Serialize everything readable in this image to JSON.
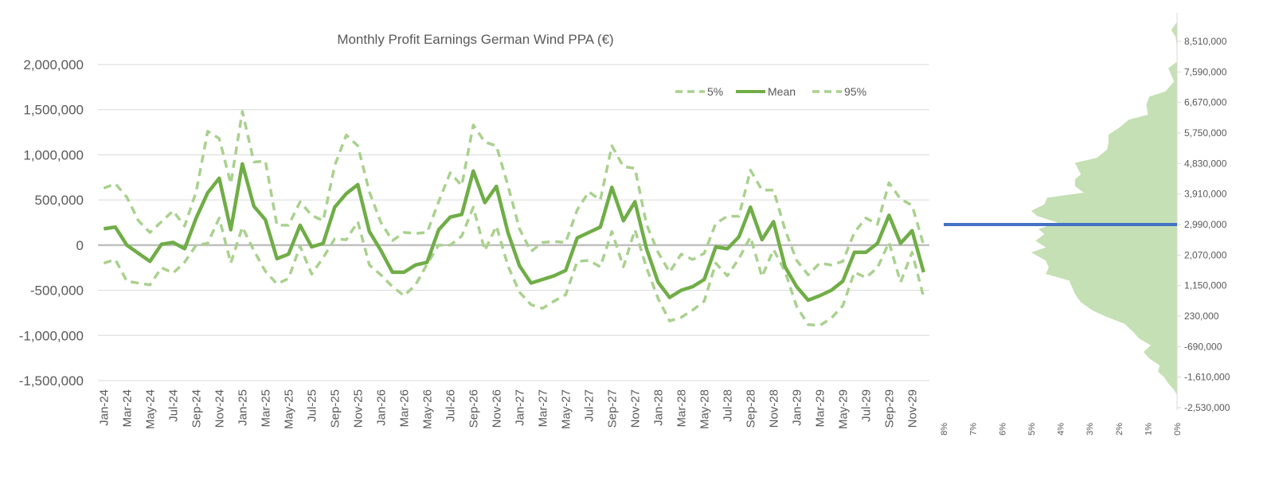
{
  "chart_data": [
    {
      "type": "line",
      "title": "Monthly Profit Earnings German Wind PPA (€)",
      "xlabel": "",
      "ylabel": "",
      "ylim": [
        -1500000,
        2000000
      ],
      "y_ticks": [
        2000000,
        1500000,
        1000000,
        500000,
        0,
        -500000,
        -1000000,
        -1500000
      ],
      "y_tick_labels": [
        "2,000,000",
        "1,500,000",
        "1,000,000",
        "500,000",
        "0",
        "-500,000",
        "-1,000,000",
        "-1,500,000"
      ],
      "grid": true,
      "legend_position": "top-right",
      "categories": [
        "Jan-24",
        "Feb-24",
        "Mar-24",
        "Apr-24",
        "May-24",
        "Jun-24",
        "Jul-24",
        "Aug-24",
        "Sep-24",
        "Oct-24",
        "Nov-24",
        "Dec-24",
        "Jan-25",
        "Feb-25",
        "Mar-25",
        "Apr-25",
        "May-25",
        "Jun-25",
        "Jul-25",
        "Aug-25",
        "Sep-25",
        "Oct-25",
        "Nov-25",
        "Dec-25",
        "Jan-26",
        "Feb-26",
        "Mar-26",
        "Apr-26",
        "May-26",
        "Jun-26",
        "Jul-26",
        "Aug-26",
        "Sep-26",
        "Oct-26",
        "Nov-26",
        "Dec-26",
        "Jan-27",
        "Feb-27",
        "Mar-27",
        "Apr-27",
        "May-27",
        "Jun-27",
        "Jul-27",
        "Aug-27",
        "Sep-27",
        "Oct-27",
        "Nov-27",
        "Dec-27",
        "Jan-28",
        "Feb-28",
        "Mar-28",
        "Apr-28",
        "May-28",
        "Jun-28",
        "Jul-28",
        "Aug-28",
        "Sep-28",
        "Oct-28",
        "Nov-28",
        "Dec-28",
        "Jan-29",
        "Feb-29",
        "Mar-29",
        "Apr-29",
        "May-29",
        "Jun-29",
        "Jul-29",
        "Aug-29",
        "Sep-29",
        "Oct-29",
        "Nov-29",
        "Dec-29"
      ],
      "x_tick_labels": [
        "Jan-24",
        "Mar-24",
        "May-24",
        "Jul-24",
        "Sep-24",
        "Nov-24",
        "Jan-25",
        "Mar-25",
        "May-25",
        "Jul-25",
        "Sep-25",
        "Nov-25",
        "Jan-26",
        "Mar-26",
        "May-26",
        "Jul-26",
        "Sep-26",
        "Nov-26",
        "Jan-27",
        "Mar-27",
        "May-27",
        "Jul-27",
        "Sep-27",
        "Nov-27",
        "Jan-28",
        "Mar-28",
        "May-28",
        "Jul-28",
        "Sep-28",
        "Nov-28",
        "Jan-29",
        "Mar-29",
        "May-29",
        "Jul-29",
        "Sep-29",
        "Nov-29"
      ],
      "series": [
        {
          "name": "5%",
          "style": "dashed",
          "color": "#a9d18e",
          "values": [
            -200000,
            -160000,
            -400000,
            -420000,
            -440000,
            -250000,
            -310000,
            -190000,
            0,
            20000,
            300000,
            -200000,
            200000,
            -60000,
            -290000,
            -430000,
            -370000,
            -10000,
            -320000,
            -140000,
            70000,
            60000,
            260000,
            -220000,
            -330000,
            -460000,
            -560000,
            -440000,
            -210000,
            0,
            0,
            100000,
            420000,
            -60000,
            210000,
            -230000,
            -520000,
            -660000,
            -700000,
            -620000,
            -550000,
            -180000,
            -170000,
            -240000,
            150000,
            -240000,
            170000,
            -250000,
            -590000,
            -840000,
            -800000,
            -720000,
            -620000,
            -200000,
            -340000,
            -150000,
            90000,
            -350000,
            -50000,
            -290000,
            -680000,
            -880000,
            -890000,
            -810000,
            -670000,
            -300000,
            -360000,
            -250000,
            30000,
            -410000,
            -80000,
            -580000
          ]
        },
        {
          "name": "Mean",
          "style": "solid",
          "color": "#70ad47",
          "values": [
            180000,
            200000,
            0,
            -90000,
            -180000,
            10000,
            30000,
            -40000,
            300000,
            580000,
            740000,
            170000,
            900000,
            430000,
            280000,
            -150000,
            -100000,
            220000,
            -20000,
            20000,
            420000,
            570000,
            670000,
            150000,
            -60000,
            -300000,
            -300000,
            -220000,
            -190000,
            170000,
            310000,
            340000,
            820000,
            470000,
            650000,
            140000,
            -230000,
            -420000,
            -380000,
            -340000,
            -280000,
            80000,
            140000,
            200000,
            640000,
            270000,
            480000,
            -40000,
            -410000,
            -580000,
            -500000,
            -460000,
            -380000,
            -20000,
            -40000,
            90000,
            420000,
            60000,
            260000,
            -240000,
            -460000,
            -610000,
            -560000,
            -500000,
            -400000,
            -80000,
            -80000,
            20000,
            330000,
            20000,
            160000,
            -300000
          ]
        },
        {
          "name": "95%",
          "style": "dashed",
          "color": "#a9d18e",
          "values": [
            630000,
            680000,
            530000,
            270000,
            140000,
            260000,
            380000,
            210000,
            590000,
            1260000,
            1180000,
            680000,
            1480000,
            920000,
            930000,
            220000,
            220000,
            480000,
            330000,
            270000,
            880000,
            1220000,
            1100000,
            590000,
            250000,
            50000,
            140000,
            130000,
            140000,
            480000,
            800000,
            660000,
            1330000,
            1140000,
            1100000,
            660000,
            180000,
            -70000,
            30000,
            40000,
            30000,
            390000,
            590000,
            500000,
            1100000,
            870000,
            850000,
            230000,
            -80000,
            -300000,
            -100000,
            -160000,
            -90000,
            240000,
            320000,
            320000,
            830000,
            610000,
            610000,
            170000,
            -170000,
            -330000,
            -200000,
            -220000,
            -180000,
            140000,
            300000,
            230000,
            690000,
            510000,
            440000,
            0
          ]
        }
      ]
    },
    {
      "type": "area",
      "orientation": "horizontal",
      "fill_color": "#c5e0b4",
      "marker_color": "#4472c4",
      "marker_value": 2990000,
      "ylim": [
        -2530000,
        9000000
      ],
      "y_ticks": [
        8510000,
        7590000,
        6670000,
        5750000,
        4830000,
        3910000,
        2990000,
        2070000,
        1150000,
        230000,
        -690000,
        -1610000,
        -2530000
      ],
      "y_tick_labels": [
        "8,510,000",
        "7,590,000",
        "6,670,000",
        "5,750,000",
        "4,830,000",
        "3,910,000",
        "2,990,000",
        "2,070,000",
        "1,150,000",
        "230,000",
        "-690,000",
        "-1,610,000",
        "-2,530,000"
      ],
      "x_ticks": [
        0.08,
        0.07,
        0.06,
        0.05,
        0.04,
        0.03,
        0.02,
        0.01,
        0
      ],
      "x_tick_labels": [
        "8%",
        "7%",
        "6%",
        "5%",
        "4%",
        "3%",
        "2%",
        "1%",
        "0%"
      ],
      "xlim": [
        0,
        0.08
      ],
      "distribution": [
        {
          "y": 9100000,
          "p": 0.0
        },
        {
          "y": 8850000,
          "p": 0.002
        },
        {
          "y": 8650000,
          "p": 0.0005
        },
        {
          "y": 8300000,
          "p": 0.0
        },
        {
          "y": 7900000,
          "p": 0.0
        },
        {
          "y": 7700000,
          "p": 0.003
        },
        {
          "y": 7300000,
          "p": 0.001
        },
        {
          "y": 7000000,
          "p": 0.004
        },
        {
          "y": 6850000,
          "p": 0.0095
        },
        {
          "y": 6600000,
          "p": 0.0105
        },
        {
          "y": 6300000,
          "p": 0.01
        },
        {
          "y": 6150000,
          "p": 0.0165
        },
        {
          "y": 5900000,
          "p": 0.02
        },
        {
          "y": 5700000,
          "p": 0.0235
        },
        {
          "y": 5450000,
          "p": 0.0235
        },
        {
          "y": 5250000,
          "p": 0.024
        },
        {
          "y": 5000000,
          "p": 0.0275
        },
        {
          "y": 4850000,
          "p": 0.035
        },
        {
          "y": 4500000,
          "p": 0.033
        },
        {
          "y": 4350000,
          "p": 0.035
        },
        {
          "y": 4150000,
          "p": 0.035
        },
        {
          "y": 3950000,
          "p": 0.032
        },
        {
          "y": 3800000,
          "p": 0.0445
        },
        {
          "y": 3600000,
          "p": 0.0455
        },
        {
          "y": 3400000,
          "p": 0.05
        },
        {
          "y": 3250000,
          "p": 0.048
        },
        {
          "y": 3050000,
          "p": 0.041
        },
        {
          "y": 2850000,
          "p": 0.0475
        },
        {
          "y": 2700000,
          "p": 0.0455
        },
        {
          "y": 2500000,
          "p": 0.0485
        },
        {
          "y": 2300000,
          "p": 0.045
        },
        {
          "y": 2150000,
          "p": 0.05
        },
        {
          "y": 1900000,
          "p": 0.045
        },
        {
          "y": 1700000,
          "p": 0.044
        },
        {
          "y": 1500000,
          "p": 0.045
        },
        {
          "y": 1300000,
          "p": 0.037
        },
        {
          "y": 1100000,
          "p": 0.036
        },
        {
          "y": 900000,
          "p": 0.035
        },
        {
          "y": 650000,
          "p": 0.033
        },
        {
          "y": 400000,
          "p": 0.029
        },
        {
          "y": 200000,
          "p": 0.024
        },
        {
          "y": 0,
          "p": 0.018
        },
        {
          "y": -250000,
          "p": 0.015
        },
        {
          "y": -450000,
          "p": 0.013
        },
        {
          "y": -650000,
          "p": 0.009
        },
        {
          "y": -850000,
          "p": 0.0115
        },
        {
          "y": -1050000,
          "p": 0.0095
        },
        {
          "y": -1250000,
          "p": 0.006
        },
        {
          "y": -1450000,
          "p": 0.0065
        },
        {
          "y": -1600000,
          "p": 0.0045
        },
        {
          "y": -1800000,
          "p": 0.003
        },
        {
          "y": -2000000,
          "p": 0.001
        },
        {
          "y": -2150000,
          "p": 0.0
        }
      ]
    }
  ]
}
